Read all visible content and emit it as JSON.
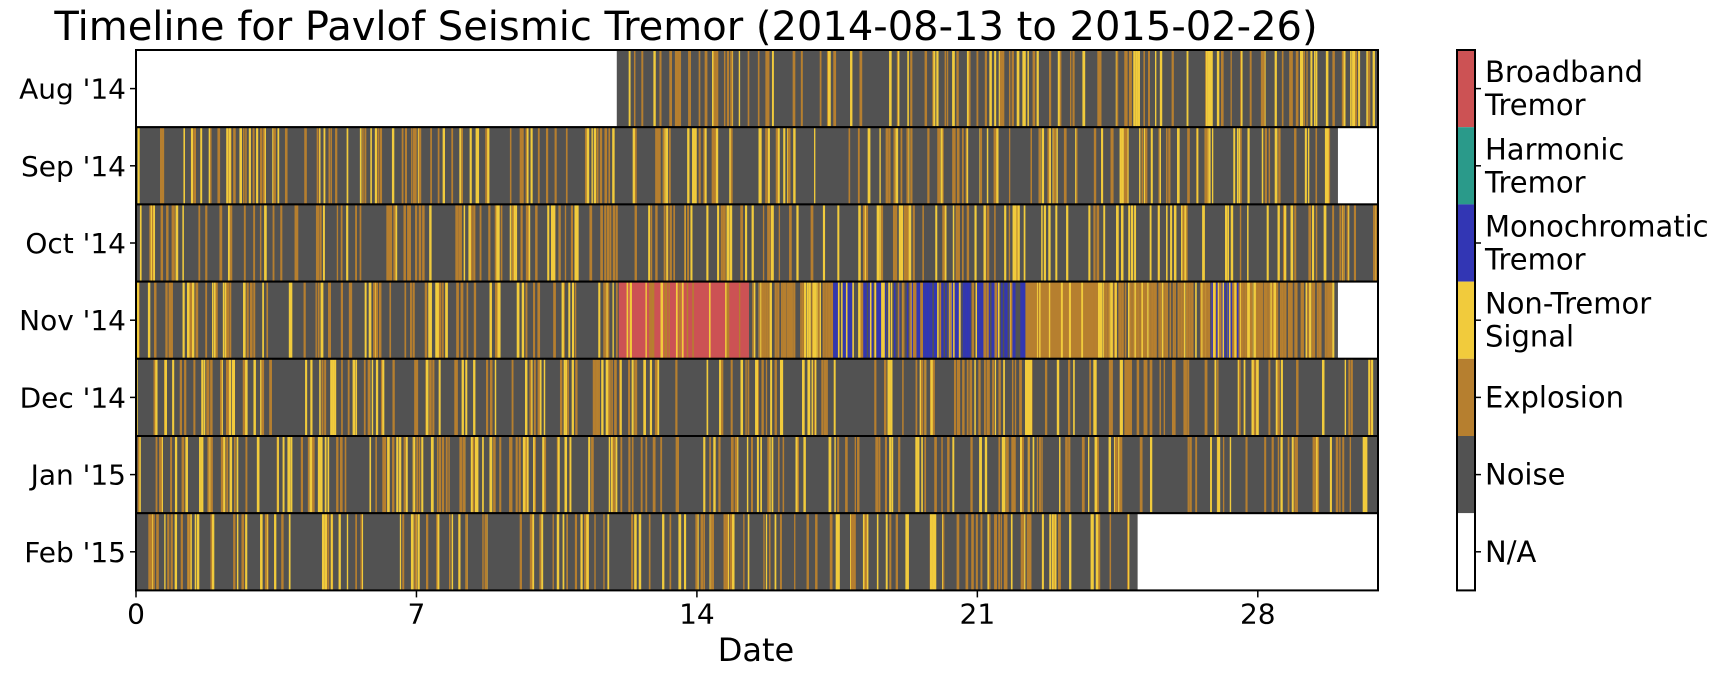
{
  "chart_data": {
    "type": "heatmap",
    "title": "Timeline for Pavlof Seismic Tremor (2014-08-13 to 2015-02-26)",
    "xlabel": "Date",
    "ylabel": "",
    "xlim": [
      0,
      31
    ],
    "x_ticks": [
      0,
      7,
      14,
      21,
      28
    ],
    "rows": [
      {
        "label": "Aug '14",
        "start_day": 12.0,
        "end_day": 31.0
      },
      {
        "label": "Sep '14",
        "start_day": 0.0,
        "end_day": 30.0
      },
      {
        "label": "Oct '14",
        "start_day": 0.0,
        "end_day": 31.0
      },
      {
        "label": "Nov '14",
        "start_day": 0.0,
        "end_day": 30.0
      },
      {
        "label": "Dec '14",
        "start_day": 0.0,
        "end_day": 31.0
      },
      {
        "label": "Jan '15",
        "start_day": 0.0,
        "end_day": 31.0
      },
      {
        "label": "Feb '15",
        "start_day": 0.0,
        "end_day": 25.0
      }
    ],
    "classes": [
      {
        "name": "Broadband Tremor",
        "label_lines": [
          "Broadband",
          "Tremor"
        ],
        "color": "#cc5254"
      },
      {
        "name": "Harmonic Tremor",
        "label_lines": [
          "Harmonic",
          "Tremor"
        ],
        "color": "#2a9a8a"
      },
      {
        "name": "Monochromatic Tremor",
        "label_lines": [
          "Monochromatic",
          "Tremor"
        ],
        "color": "#3236b4"
      },
      {
        "name": "Non-Tremor Signal",
        "label_lines": [
          "Non-Tremor",
          "Signal"
        ],
        "color": "#f1cb3c"
      },
      {
        "name": "Explosion",
        "label_lines": [
          "Explosion"
        ],
        "color": "#b67f2f"
      },
      {
        "name": "Noise",
        "label_lines": [
          "Noise"
        ],
        "color": "#525252"
      },
      {
        "name": "N/A",
        "label_lines": [
          "N/A"
        ],
        "color": "#ffffff"
      }
    ],
    "segments": [
      {
        "row": 3,
        "start": 12.05,
        "end": 15.3,
        "class": "Broadband Tremor"
      },
      {
        "row": 3,
        "start": 15.3,
        "end": 17.4,
        "class": "Explosion",
        "density": "mixed"
      },
      {
        "row": 3,
        "start": 17.4,
        "end": 22.2,
        "class": "Monochromatic Tremor",
        "density": "mixed"
      },
      {
        "row": 3,
        "start": 22.2,
        "end": 24.0,
        "class": "Explosion"
      },
      {
        "row": 3,
        "start": 24.0,
        "end": 29.9,
        "class": "Explosion",
        "density": "mixed"
      },
      {
        "row": 3,
        "start": 26.8,
        "end": 27.5,
        "class": "Monochromatic Tremor",
        "density": "mixed"
      }
    ],
    "legend": "right-colorbar"
  }
}
